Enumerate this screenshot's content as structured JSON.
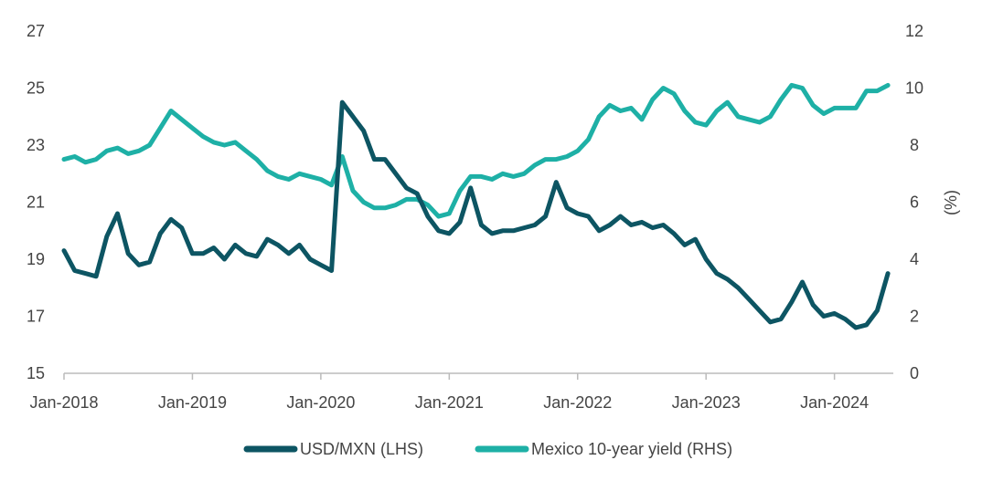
{
  "chart_data": {
    "type": "line",
    "title": "",
    "xlabel": "",
    "ylabel_left": "",
    "ylabel_right": "(%)",
    "ylim_left": [
      15,
      27
    ],
    "ylim_right": [
      0,
      12
    ],
    "left_ticks": [
      "15",
      "17",
      "19",
      "21",
      "23",
      "25",
      "27"
    ],
    "right_ticks": [
      "0",
      "2",
      "4",
      "6",
      "8",
      "10",
      "12"
    ],
    "x_ticks": [
      "Jan-2018",
      "Jan-2019",
      "Jan-2020",
      "Jan-2021",
      "Jan-2022",
      "Jan-2023",
      "Jan-2024"
    ],
    "xlim": [
      "2018-01",
      "2024-06"
    ],
    "grid": false,
    "legend_position": "bottom",
    "colors": {
      "usd_mxn": "#0d5563",
      "yield": "#1eb0a6"
    },
    "series": [
      {
        "name": "USD/MXN (LHS)",
        "axis": "left",
        "x": [
          "2018-01",
          "2018-02",
          "2018-03",
          "2018-04",
          "2018-05",
          "2018-06",
          "2018-07",
          "2018-08",
          "2018-09",
          "2018-10",
          "2018-11",
          "2018-12",
          "2019-01",
          "2019-02",
          "2019-03",
          "2019-04",
          "2019-05",
          "2019-06",
          "2019-07",
          "2019-08",
          "2019-09",
          "2019-10",
          "2019-11",
          "2019-12",
          "2020-01",
          "2020-02",
          "2020-03",
          "2020-04",
          "2020-05",
          "2020-06",
          "2020-07",
          "2020-08",
          "2020-09",
          "2020-10",
          "2020-11",
          "2020-12",
          "2021-01",
          "2021-02",
          "2021-03",
          "2021-04",
          "2021-05",
          "2021-06",
          "2021-07",
          "2021-08",
          "2021-09",
          "2021-10",
          "2021-11",
          "2021-12",
          "2022-01",
          "2022-02",
          "2022-03",
          "2022-04",
          "2022-05",
          "2022-06",
          "2022-07",
          "2022-08",
          "2022-09",
          "2022-10",
          "2022-11",
          "2022-12",
          "2023-01",
          "2023-02",
          "2023-03",
          "2023-04",
          "2023-05",
          "2023-06",
          "2023-07",
          "2023-08",
          "2023-09",
          "2023-10",
          "2023-11",
          "2023-12",
          "2024-01",
          "2024-02",
          "2024-03",
          "2024-04",
          "2024-05",
          "2024-06"
        ],
        "values": [
          19.3,
          18.6,
          18.5,
          18.4,
          19.8,
          20.6,
          19.2,
          18.8,
          18.9,
          19.9,
          20.4,
          20.1,
          19.2,
          19.2,
          19.4,
          19.0,
          19.5,
          19.2,
          19.1,
          19.7,
          19.5,
          19.2,
          19.5,
          19.0,
          18.8,
          18.6,
          24.5,
          24.0,
          23.5,
          22.5,
          22.5,
          22.0,
          21.5,
          21.3,
          20.5,
          20.0,
          19.9,
          20.3,
          21.5,
          20.2,
          19.9,
          20.0,
          20.0,
          20.1,
          20.2,
          20.5,
          21.7,
          20.8,
          20.6,
          20.5,
          20.0,
          20.2,
          20.5,
          20.2,
          20.3,
          20.1,
          20.2,
          19.9,
          19.5,
          19.7,
          19.0,
          18.5,
          18.3,
          18.0,
          17.6,
          17.2,
          16.8,
          16.9,
          17.5,
          18.2,
          17.4,
          17.0,
          17.1,
          16.9,
          16.6,
          16.7,
          17.2,
          18.5
        ]
      },
      {
        "name": "Mexico 10-year yield (RHS)",
        "axis": "right",
        "x": [
          "2018-01",
          "2018-02",
          "2018-03",
          "2018-04",
          "2018-05",
          "2018-06",
          "2018-07",
          "2018-08",
          "2018-09",
          "2018-10",
          "2018-11",
          "2018-12",
          "2019-01",
          "2019-02",
          "2019-03",
          "2019-04",
          "2019-05",
          "2019-06",
          "2019-07",
          "2019-08",
          "2019-09",
          "2019-10",
          "2019-11",
          "2019-12",
          "2020-01",
          "2020-02",
          "2020-03",
          "2020-04",
          "2020-05",
          "2020-06",
          "2020-07",
          "2020-08",
          "2020-09",
          "2020-10",
          "2020-11",
          "2020-12",
          "2021-01",
          "2021-02",
          "2021-03",
          "2021-04",
          "2021-05",
          "2021-06",
          "2021-07",
          "2021-08",
          "2021-09",
          "2021-10",
          "2021-11",
          "2021-12",
          "2022-01",
          "2022-02",
          "2022-03",
          "2022-04",
          "2022-05",
          "2022-06",
          "2022-07",
          "2022-08",
          "2022-09",
          "2022-10",
          "2022-11",
          "2022-12",
          "2023-01",
          "2023-02",
          "2023-03",
          "2023-04",
          "2023-05",
          "2023-06",
          "2023-07",
          "2023-08",
          "2023-09",
          "2023-10",
          "2023-11",
          "2023-12",
          "2024-01",
          "2024-02",
          "2024-03",
          "2024-04",
          "2024-05",
          "2024-06"
        ],
        "values": [
          7.5,
          7.6,
          7.4,
          7.5,
          7.8,
          7.9,
          7.7,
          7.8,
          8.0,
          8.6,
          9.2,
          8.9,
          8.6,
          8.3,
          8.1,
          8.0,
          8.1,
          7.8,
          7.5,
          7.1,
          6.9,
          6.8,
          7.0,
          6.9,
          6.8,
          6.6,
          7.6,
          6.4,
          6.0,
          5.8,
          5.8,
          5.9,
          6.1,
          6.1,
          5.9,
          5.5,
          5.6,
          6.4,
          6.9,
          6.9,
          6.8,
          7.0,
          6.9,
          7.0,
          7.3,
          7.5,
          7.5,
          7.6,
          7.8,
          8.2,
          9.0,
          9.4,
          9.2,
          9.3,
          8.9,
          9.6,
          10.0,
          9.8,
          9.2,
          8.8,
          8.7,
          9.2,
          9.5,
          9.0,
          8.9,
          8.8,
          9.0,
          9.6,
          10.1,
          10.0,
          9.4,
          9.1,
          9.3,
          9.3,
          9.3,
          9.9,
          9.9,
          10.1
        ]
      }
    ]
  }
}
